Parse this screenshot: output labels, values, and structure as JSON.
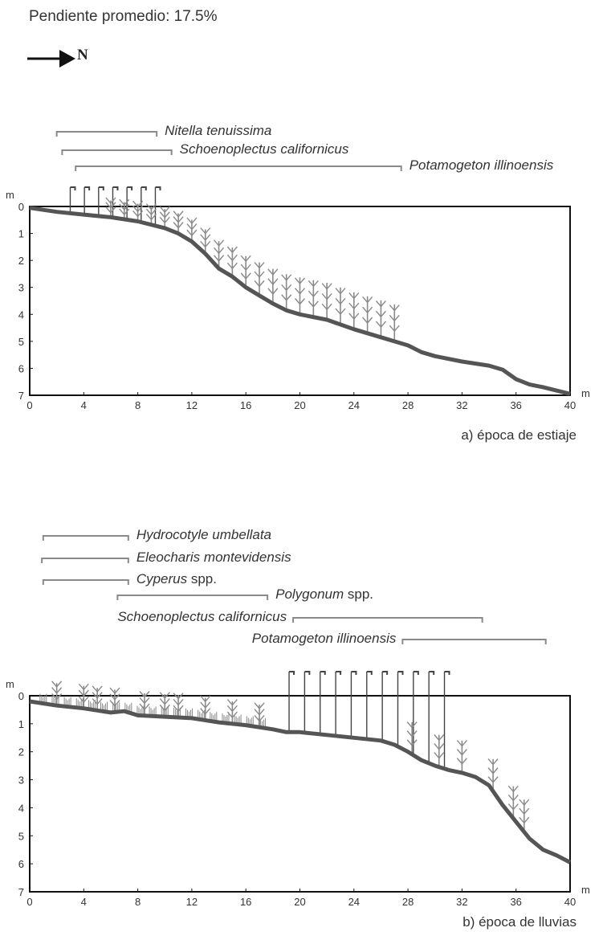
{
  "header": {
    "slope_text": "Pendiente promedio: 17.5%",
    "north_label": "N"
  },
  "axes": {
    "x_ticks": [
      "0",
      "4",
      "8",
      "12",
      "16",
      "20",
      "24",
      "28",
      "32",
      "36",
      "40"
    ],
    "y_ticks": [
      "0",
      "1",
      "2",
      "3",
      "4",
      "5",
      "6",
      "7"
    ],
    "x_unit": "m",
    "y_unit": "m",
    "x_range": [
      0,
      40
    ],
    "y_range": [
      0,
      7
    ]
  },
  "panels": [
    {
      "id": "a",
      "caption": "a) época de estiaje",
      "species": [
        {
          "name": "Nitella tenuissima",
          "suffix": "",
          "start": 2,
          "end": 9.4
        },
        {
          "name": "Schoenoplectus californicus",
          "suffix": "",
          "start": 2.4,
          "end": 10.5
        },
        {
          "name": "Potamogeton illinoensis",
          "suffix": "",
          "start": 3.4,
          "end": 27.5
        }
      ],
      "profile": [
        [
          0,
          0.05
        ],
        [
          2,
          0.2
        ],
        [
          4,
          0.3
        ],
        [
          6,
          0.4
        ],
        [
          8,
          0.55
        ],
        [
          10,
          0.8
        ],
        [
          11,
          1
        ],
        [
          12,
          1.3
        ],
        [
          13,
          1.75
        ],
        [
          14,
          2.3
        ],
        [
          15,
          2.6
        ],
        [
          16,
          3.0
        ],
        [
          17,
          3.3
        ],
        [
          18,
          3.6
        ],
        [
          19,
          3.85
        ],
        [
          20,
          4.0
        ],
        [
          22,
          4.2
        ],
        [
          24,
          4.55
        ],
        [
          26,
          4.85
        ],
        [
          27,
          5.0
        ],
        [
          28,
          5.15
        ],
        [
          29,
          5.4
        ],
        [
          30,
          5.55
        ],
        [
          32,
          5.75
        ],
        [
          34,
          5.9
        ],
        [
          35,
          6.05
        ],
        [
          36,
          6.4
        ],
        [
          37,
          6.6
        ],
        [
          38,
          6.7
        ],
        [
          40,
          6.95
        ]
      ]
    },
    {
      "id": "b",
      "caption": "b) época de lluvias",
      "species": [
        {
          "name": "Hydrocotyle umbellata",
          "suffix": "",
          "start": 1,
          "end": 7.3
        },
        {
          "name": "Eleocharis montevidensis",
          "suffix": "",
          "start": 0.9,
          "end": 7.3
        },
        {
          "name": "Cyperus",
          "suffix": " spp.",
          "start": 1,
          "end": 7.3
        },
        {
          "name": "Polygonum",
          "suffix": " spp.",
          "start": 6.5,
          "end": 17.6
        },
        {
          "name": "Schoenoplectus californicus",
          "suffix": "",
          "start": 19.5,
          "end": 33.5
        },
        {
          "name": "Potamogeton illinoensis",
          "suffix": "",
          "start": 27.6,
          "end": 38.2
        }
      ],
      "profile": [
        [
          0,
          0.2
        ],
        [
          2,
          0.35
        ],
        [
          4,
          0.45
        ],
        [
          6,
          0.6
        ],
        [
          7,
          0.55
        ],
        [
          8,
          0.7
        ],
        [
          10,
          0.75
        ],
        [
          12,
          0.8
        ],
        [
          14,
          0.95
        ],
        [
          16,
          1.05
        ],
        [
          18,
          1.2
        ],
        [
          19,
          1.3
        ],
        [
          20,
          1.3
        ],
        [
          22,
          1.4
        ],
        [
          24,
          1.5
        ],
        [
          26,
          1.6
        ],
        [
          27,
          1.75
        ],
        [
          28,
          2.0
        ],
        [
          29,
          2.3
        ],
        [
          30,
          2.5
        ],
        [
          31,
          2.65
        ],
        [
          32,
          2.75
        ],
        [
          33,
          2.9
        ],
        [
          34,
          3.2
        ],
        [
          35,
          3.9
        ],
        [
          36,
          4.5
        ],
        [
          37,
          5.1
        ],
        [
          38,
          5.5
        ],
        [
          39,
          5.7
        ],
        [
          40,
          5.95
        ]
      ]
    }
  ],
  "colors": {
    "profile": "#555555",
    "range_line": "#8a8a8a",
    "plant": "#8a8a8a",
    "stem": "#444444",
    "frame": "#111111"
  }
}
